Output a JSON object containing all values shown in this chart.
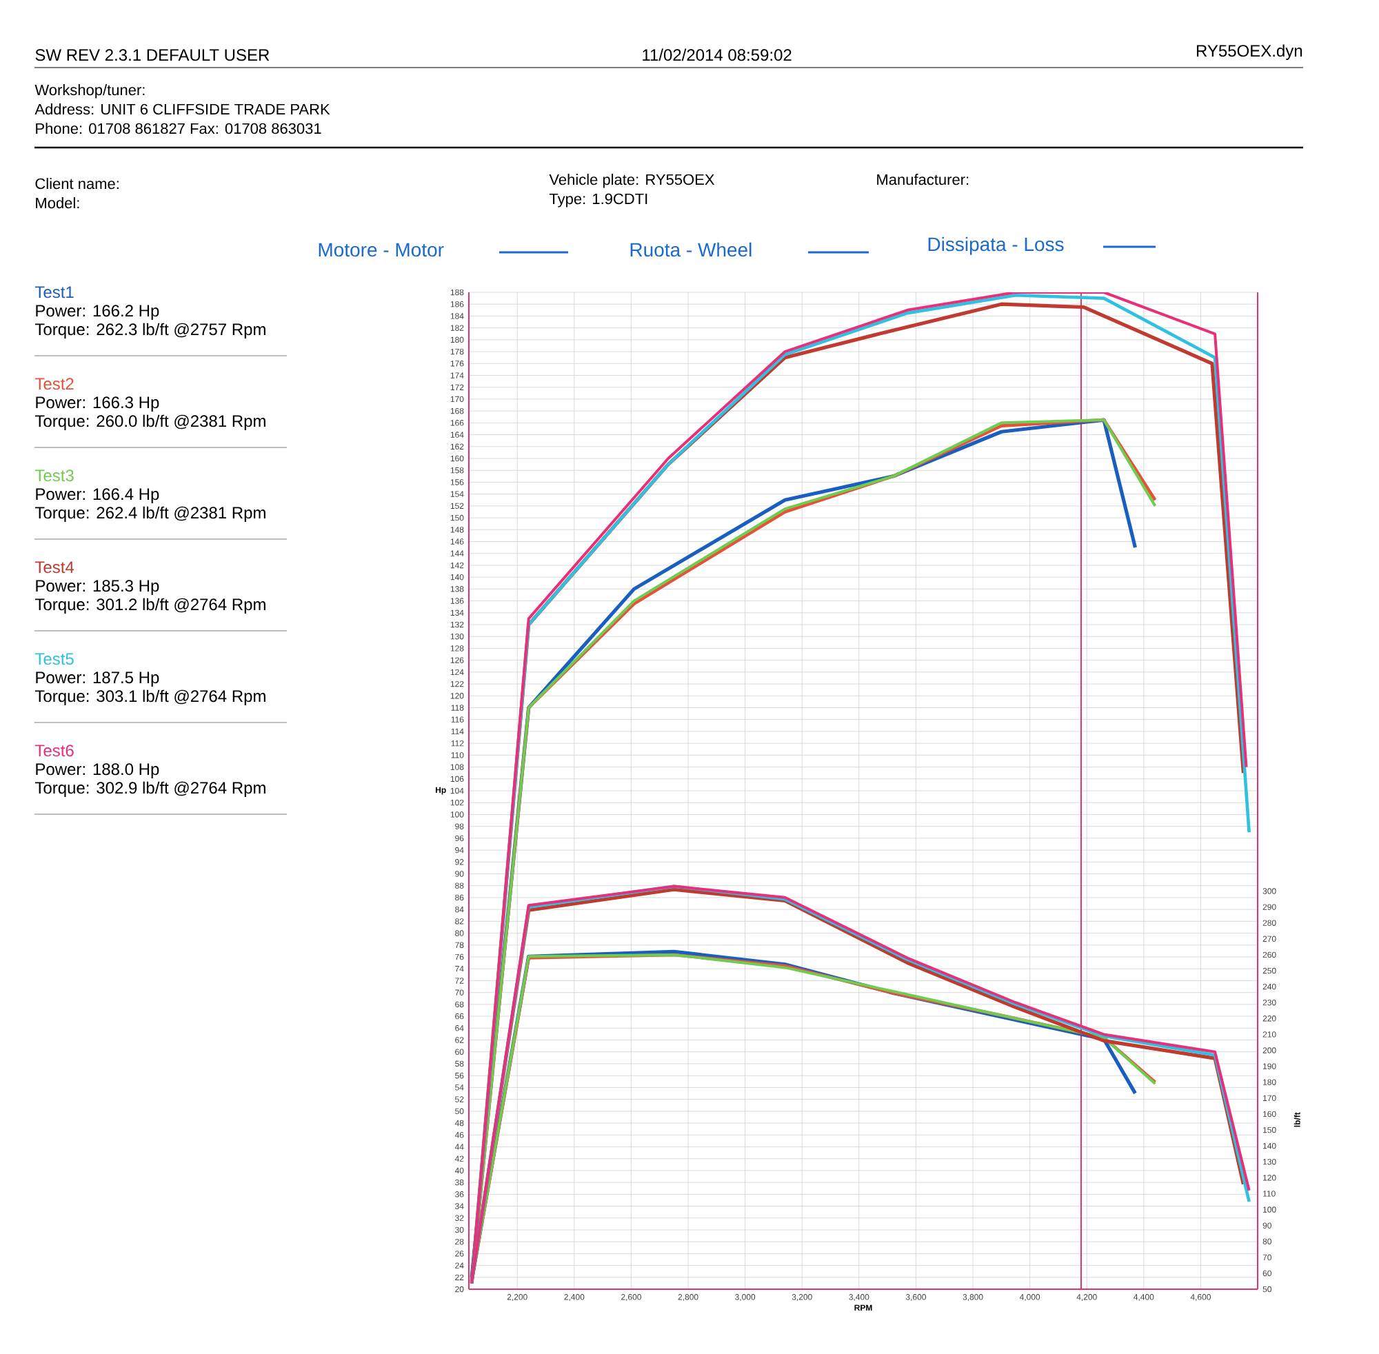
{
  "chart_data": {
    "type": "line",
    "xlabel": "RPM",
    "ylabel": "Hp",
    "y2label": "lb/ft",
    "annotations": [
      "SW REV 2.3.1  DEFAULT USER",
      "11/02/2014 08:59:02",
      "RY55OEX.dyn",
      "Workshop/tuner:",
      "Address: UNIT 6 CLIFFSIDE TRADE PARK",
      "Phone: 01708 861827 Fax: 01708 863031",
      "Client name:",
      "Model:",
      "Vehicle plate: RY55OEX",
      "Type: 1.9CDTI",
      "Manufacturer:",
      "Motore - Motor",
      "Ruota - Wheel",
      "Dissipata - Loss",
      "Power: 166.2 Hp",
      "Torque: 262.3 lb/ft @2757 Rpm",
      "Power: 166.3 Hp",
      "Torque: 260.0 lb/ft @2381 Rpm",
      "Power: 166.4 Hp",
      "Torque: 262.4 lb/ft @2381 Rpm",
      "Power: 185.3 Hp",
      "Torque: 301.2 lb/ft @2764 Rpm",
      "Power: 187.5 Hp",
      "Torque: 303.1 lb/ft @2764 Rpm",
      "Power: 188.0 Hp",
      "Torque: 302.9 lb/ft @2764 Rpm"
    ],
    "series": [
      {
        "name": "Test1",
        "color": "#1a5fc0",
        "x": [
          2040,
          2240,
          2610,
          3140,
          3520,
          3900,
          4260,
          4370
        ],
        "values": [
          22,
          118,
          138,
          153,
          157,
          164.5,
          166.5,
          145
        ]
      },
      {
        "name": "Test2",
        "color": "#e8503a",
        "x": [
          2040,
          2240,
          2610,
          3140,
          3520,
          3900,
          4260,
          4440
        ],
        "values": [
          21,
          118,
          135.5,
          151,
          157,
          165.5,
          166.5,
          153
        ]
      },
      {
        "name": "Test3",
        "color": "#70cc50",
        "x": [
          2040,
          2240,
          2610,
          3140,
          3520,
          3900,
          4260,
          4440
        ],
        "values": [
          21,
          118,
          136,
          151.5,
          157,
          166,
          166.5,
          152
        ]
      },
      {
        "name": "Test4",
        "color": "#c03a30",
        "x": [
          2040,
          2240,
          2730,
          3140,
          3470,
          3900,
          4190,
          4640,
          4750
        ],
        "values": [
          21,
          132,
          159,
          177,
          181,
          186,
          185.5,
          176,
          107
        ]
      },
      {
        "name": "Test5",
        "color": "#30c0e0",
        "x": [
          2040,
          2240,
          2730,
          3140,
          3570,
          3950,
          4260,
          4650,
          4770
        ],
        "values": [
          21,
          132,
          159,
          177.5,
          184.5,
          187.5,
          187,
          177,
          97
        ]
      },
      {
        "name": "Test6",
        "color": "#e8307a",
        "x": [
          2040,
          2240,
          2730,
          3140,
          3570,
          3950,
          4260,
          4650,
          4760
        ],
        "values": [
          21,
          133,
          160,
          178,
          185,
          188,
          188,
          181,
          108
        ]
      },
      {
        "color": "#1a5fc0",
        "axis": "y2",
        "x": [
          2040,
          2240,
          2750,
          3140,
          3520,
          3900,
          4260,
          4370
        ],
        "values": [
          56,
          259,
          262,
          254,
          236,
          221,
          207,
          173
        ]
      },
      {
        "color": "#e8503a",
        "axis": "y2",
        "x": [
          2040,
          2240,
          2750,
          3140,
          3520,
          3900,
          4260,
          4440
        ],
        "values": [
          55,
          258,
          260,
          253,
          236,
          222,
          208,
          180
        ]
      },
      {
        "color": "#70cc50",
        "axis": "y2",
        "x": [
          2040,
          2240,
          2750,
          3140,
          3520,
          3900,
          4260,
          4440
        ],
        "values": [
          55,
          259,
          260,
          252,
          237,
          222,
          208,
          179
        ]
      },
      {
        "color": "#c03a30",
        "axis": "y2",
        "x": [
          2040,
          2240,
          2750,
          3140,
          3570,
          3950,
          4260,
          4650,
          4750
        ],
        "values": [
          55,
          288,
          301,
          294,
          255,
          227,
          206,
          195,
          116
        ]
      },
      {
        "color": "#30c0e0",
        "axis": "y2",
        "x": [
          2040,
          2240,
          2750,
          3140,
          3570,
          3950,
          4260,
          4650,
          4770
        ],
        "values": [
          55,
          290,
          303,
          295,
          257,
          229,
          209,
          197,
          105
        ]
      },
      {
        "color": "#e8307a",
        "axis": "y2",
        "x": [
          2040,
          2240,
          2750,
          3140,
          3570,
          3950,
          4260,
          4650,
          4770
        ],
        "values": [
          55,
          291,
          303,
          296,
          258,
          230,
          210,
          199,
          112
        ]
      }
    ],
    "xlim": [
      2030,
      4800
    ],
    "xticks": [
      {
        "value": 2200,
        "label": "2,200"
      },
      {
        "value": 2400,
        "label": "2,400"
      },
      {
        "value": 2600,
        "label": "2,600"
      },
      {
        "value": 2800,
        "label": "2,800"
      },
      {
        "value": 3000,
        "label": "3,000"
      },
      {
        "value": 3200,
        "label": "3,200"
      },
      {
        "value": 3400,
        "label": "3,400"
      },
      {
        "value": 3600,
        "label": "3,600"
      },
      {
        "value": 3800,
        "label": "3,800"
      },
      {
        "value": 4000,
        "label": "4,000"
      },
      {
        "value": 4200,
        "label": "4,200"
      },
      {
        "value": 4400,
        "label": "4,400"
      },
      {
        "value": 4600,
        "label": "4,600"
      }
    ],
    "ylim": [
      20,
      188
    ],
    "yticks": [
      20,
      22,
      24,
      26,
      28,
      30,
      32,
      34,
      36,
      38,
      40,
      42,
      44,
      46,
      48,
      50,
      52,
      54,
      56,
      58,
      60,
      62,
      64,
      66,
      68,
      70,
      72,
      74,
      76,
      78,
      80,
      82,
      84,
      86,
      88,
      90,
      92,
      94,
      96,
      98,
      100,
      102,
      104,
      106,
      108,
      110,
      112,
      114,
      116,
      118,
      120,
      122,
      124,
      126,
      128,
      130,
      132,
      134,
      136,
      138,
      140,
      142,
      144,
      146,
      148,
      150,
      152,
      154,
      156,
      158,
      160,
      162,
      164,
      166,
      168,
      170,
      172,
      174,
      176,
      178,
      180,
      182,
      184,
      186,
      188
    ],
    "y2lim": [
      50,
      676
    ],
    "y2ticks": [
      50,
      60,
      70,
      80,
      90,
      100,
      110,
      120,
      130,
      140,
      150,
      160,
      170,
      180,
      190,
      200,
      210,
      220,
      230,
      240,
      250,
      260,
      270,
      280,
      290,
      300
    ],
    "ref_lines": [
      {
        "axis": "x",
        "value": 4180,
        "color": "#e8306a"
      }
    ],
    "grid": true,
    "legend": "left",
    "marker": "none"
  }
}
